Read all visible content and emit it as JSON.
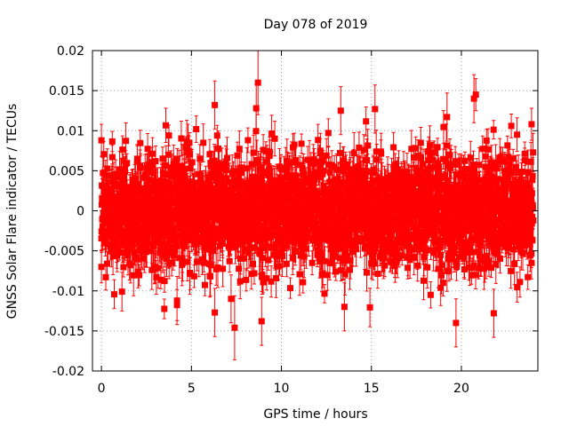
{
  "chart_data": {
    "type": "scatter",
    "title": "Day 078 of 2019",
    "xlabel": "GPS time / hours",
    "ylabel": "GNSS Solar Flare indicator / TECUs",
    "xlim": [
      -0.5,
      24.25
    ],
    "ylim": [
      -0.02,
      0.02
    ],
    "xticks": [
      0,
      5,
      10,
      15,
      20
    ],
    "xtick_labels": [
      "0",
      "5",
      "10",
      "15",
      "20"
    ],
    "yticks": [
      -0.02,
      -0.015,
      -0.01,
      -0.005,
      0,
      0.005,
      0.01,
      0.015,
      0.02
    ],
    "ytick_labels": [
      "-0.02",
      "-0.015",
      "-0.01",
      "-0.005",
      "0",
      "0.005",
      "0.01",
      "0.015",
      "0.02"
    ],
    "grid": true,
    "color": "#ff0000",
    "marker": "square",
    "error_bars": true,
    "series_description": "Dense noise of red square points with error bars sampled from 0 to 24 hours, scattered mostly between -0.01 and 0.01 TECU",
    "highlighted_points": [
      {
        "x": 8.7,
        "y": 0.016,
        "err": 0.004
      },
      {
        "x": 8.6,
        "y": 0.0128,
        "err": 0.003
      },
      {
        "x": 6.3,
        "y": 0.0132,
        "err": 0.003
      },
      {
        "x": 13.3,
        "y": 0.0125,
        "err": 0.003
      },
      {
        "x": 15.2,
        "y": 0.0127,
        "err": 0.003
      },
      {
        "x": 20.8,
        "y": 0.0145,
        "err": 0.002
      },
      {
        "x": 20.7,
        "y": 0.014,
        "err": 0.003
      },
      {
        "x": 19.2,
        "y": 0.0117,
        "err": 0.003
      },
      {
        "x": 0.0,
        "y": 0.0088,
        "err": 0.002
      },
      {
        "x": 23.9,
        "y": 0.0108,
        "err": 0.002
      },
      {
        "x": 7.4,
        "y": -0.0146,
        "err": 0.004
      },
      {
        "x": 8.9,
        "y": -0.0138,
        "err": 0.003
      },
      {
        "x": 19.7,
        "y": -0.014,
        "err": 0.003
      },
      {
        "x": 6.3,
        "y": -0.0127,
        "err": 0.003
      },
      {
        "x": 13.5,
        "y": -0.012,
        "err": 0.003
      },
      {
        "x": 21.8,
        "y": -0.0128,
        "err": 0.003
      },
      {
        "x": 4.2,
        "y": -0.0112,
        "err": 0.003
      },
      {
        "x": 7.2,
        "y": -0.011,
        "err": 0.003
      },
      {
        "x": 0.0,
        "y": -0.007,
        "err": 0.002
      },
      {
        "x": 23.9,
        "y": -0.0065,
        "err": 0.002
      }
    ],
    "noise_sigma": 0.0035,
    "mean_error_bar": 0.0018,
    "sample_count": 2880,
    "random_seed": 78
  }
}
